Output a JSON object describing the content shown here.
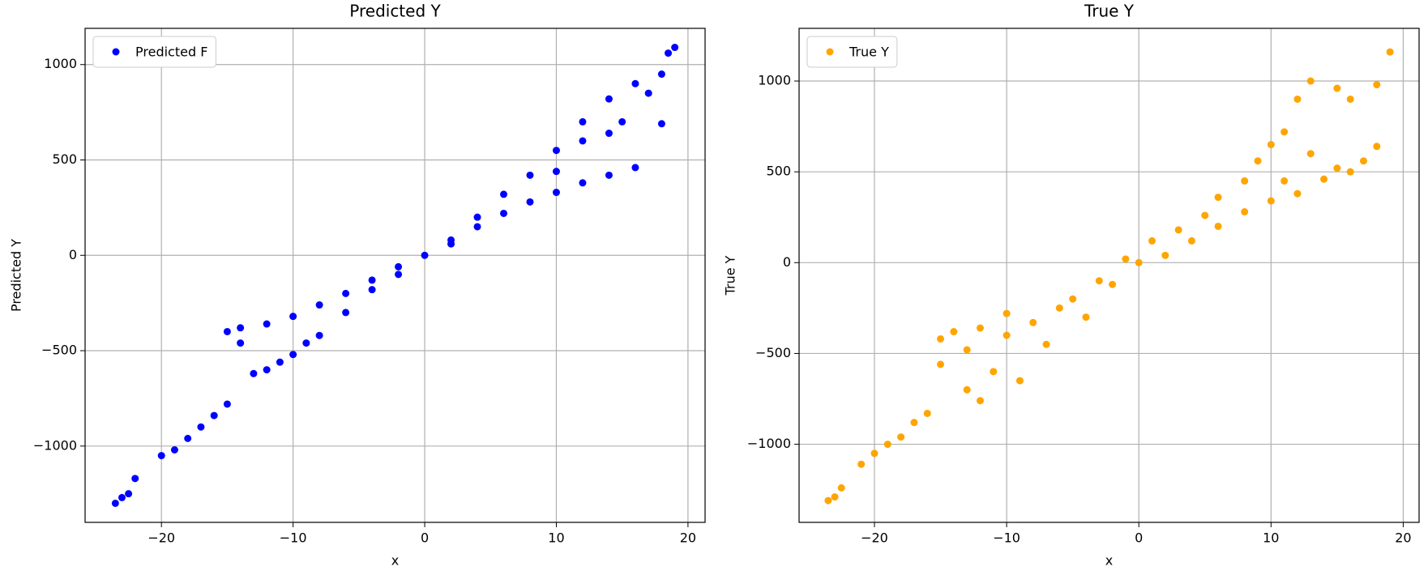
{
  "chart_data": [
    {
      "type": "scatter",
      "title": "Predicted Y",
      "x_label": "x",
      "y_label": "Predicted Y",
      "xlim": [
        -25.8,
        21.3
      ],
      "ylim": [
        -1400,
        1190
      ],
      "xticks": [
        {
          "value": -20,
          "label": "−20"
        },
        {
          "value": -10,
          "label": "−10"
        },
        0,
        10,
        20
      ],
      "yticks": [
        {
          "value": -1000,
          "label": "−1000"
        },
        {
          "value": -500,
          "label": "−500"
        },
        0,
        500,
        1000
      ],
      "grid": true,
      "legend": "upper left",
      "series": [
        {
          "name": "Predicted F",
          "color": "#0000ff",
          "x": [
            -23.5,
            -23,
            -22.5,
            -22,
            -20,
            -19,
            -18,
            -17,
            -16,
            -15,
            -15,
            -14,
            -14,
            -13,
            -12,
            -12,
            -11,
            -10,
            -10,
            -9,
            -8,
            -8,
            -6,
            -6,
            -4,
            -4,
            -2,
            -2,
            0,
            2,
            2,
            4,
            4,
            6,
            6,
            8,
            8,
            10,
            10,
            10,
            12,
            12,
            12,
            14,
            14,
            14,
            16,
            16,
            17,
            18,
            18,
            19,
            18.5,
            15
          ],
          "values": [
            -1300,
            -1270,
            -1250,
            -1170,
            -1050,
            -1020,
            -960,
            -900,
            -840,
            -780,
            -400,
            -460,
            -380,
            -620,
            -600,
            -360,
            -560,
            -520,
            -320,
            -460,
            -420,
            -260,
            -300,
            -200,
            -180,
            -130,
            -100,
            -60,
            0,
            80,
            60,
            200,
            150,
            320,
            220,
            420,
            280,
            550,
            330,
            440,
            700,
            600,
            380,
            820,
            640,
            420,
            900,
            460,
            850,
            690,
            950,
            1090,
            1060,
            700
          ]
        }
      ]
    },
    {
      "type": "scatter",
      "title": "True Y",
      "x_label": "x",
      "y_label": "True Y",
      "xlim": [
        -25.7,
        21.2
      ],
      "ylim": [
        -1430,
        1290
      ],
      "xticks": [
        {
          "value": -20,
          "label": "−20"
        },
        {
          "value": -10,
          "label": "−10"
        },
        0,
        10,
        20
      ],
      "yticks": [
        {
          "value": -1000,
          "label": "−1000"
        },
        {
          "value": -500,
          "label": "−500"
        },
        0,
        500,
        1000
      ],
      "grid": true,
      "legend": "upper left",
      "series": [
        {
          "name": "True Y",
          "color": "#ffa500",
          "x": [
            -23.5,
            -23,
            -22.5,
            -21,
            -20,
            -19,
            -18,
            -17,
            -16,
            -15,
            -15,
            -14,
            -13,
            -13,
            -12,
            -12,
            -11,
            -10,
            -10,
            -9,
            -8,
            -7,
            -6,
            -5,
            -4,
            -3,
            -2,
            -1,
            0,
            1,
            2,
            3,
            4,
            5,
            6,
            6,
            8,
            8,
            9,
            10,
            10,
            11,
            11,
            12,
            12,
            13,
            13,
            14,
            15,
            15,
            16,
            16,
            17,
            18,
            18,
            19
          ],
          "values": [
            -1310,
            -1290,
            -1240,
            -1110,
            -1050,
            -1000,
            -960,
            -880,
            -830,
            -560,
            -420,
            -380,
            -700,
            -480,
            -760,
            -360,
            -600,
            -400,
            -280,
            -650,
            -330,
            -450,
            -250,
            -200,
            -300,
            -100,
            -120,
            20,
            0,
            120,
            40,
            180,
            120,
            260,
            360,
            200,
            450,
            280,
            560,
            650,
            340,
            720,
            450,
            900,
            380,
            1000,
            600,
            460,
            960,
            520,
            900,
            500,
            560,
            640,
            980,
            1160
          ]
        }
      ]
    }
  ]
}
